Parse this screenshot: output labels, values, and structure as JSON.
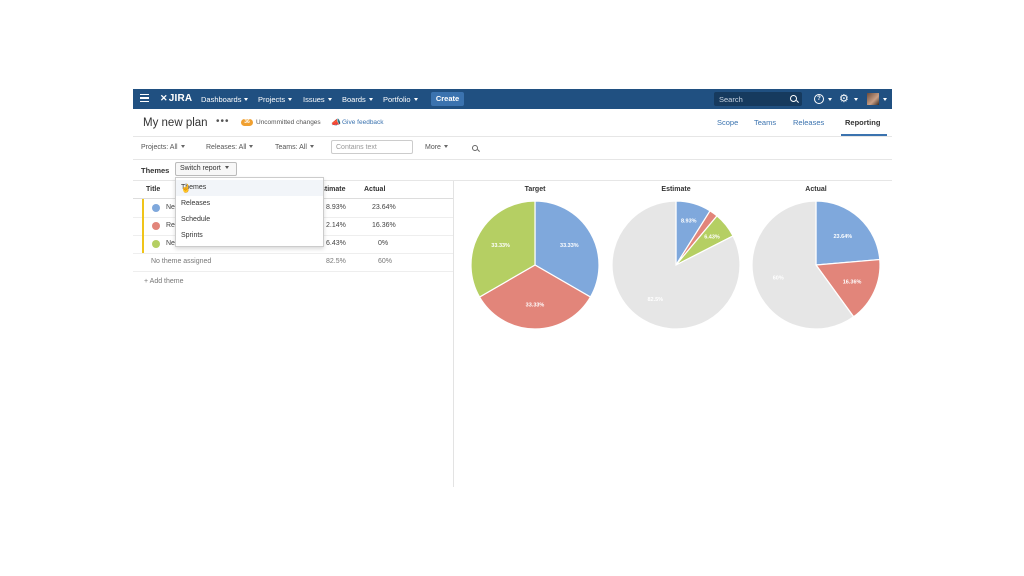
{
  "nav": {
    "logo": "JIRA",
    "items": [
      {
        "label": "Dashboards"
      },
      {
        "label": "Issues"
      },
      {
        "label": "Boards"
      },
      {
        "label": "Portfolio"
      }
    ],
    "projects_label": "Projects",
    "create_label": "Create",
    "search_placeholder": "Search",
    "help_icon": "help-icon",
    "settings_icon": "gear-icon"
  },
  "plan": {
    "title": "My new plan",
    "more": "•••",
    "uncommitted_count": "36",
    "uncommitted_label": "Uncommitted changes",
    "feedback_label": "Give feedback",
    "tabs": [
      {
        "label": "Scope"
      },
      {
        "label": "Teams"
      },
      {
        "label": "Releases"
      },
      {
        "label": "Reporting"
      }
    ]
  },
  "filters": {
    "projects": "Projects: All",
    "releases": "Releases: All",
    "teams": "Teams: All",
    "text_placeholder": "Contains text",
    "more": "More"
  },
  "report": {
    "label": "Themes",
    "switch_label": "Switch report",
    "options": [
      "Themes",
      "Releases",
      "Schedule",
      "Sprints"
    ]
  },
  "table": {
    "headers": {
      "title": "Title",
      "estimate": "stimate",
      "actual": "Actual"
    },
    "rows": [
      {
        "title": "Ne",
        "color": "#7fa8dc",
        "estimate": "8.93%",
        "actual": "23.64%"
      },
      {
        "title": "Re",
        "color": "#e2857a",
        "estimate": "2.14%",
        "actual": "16.36%"
      },
      {
        "title": "New St",
        "color": "#b5cf63",
        "estimate": "6.43%",
        "actual": "0%"
      }
    ],
    "unassigned": {
      "title": "No theme assigned",
      "estimate": "82.5%",
      "actual": "60%"
    },
    "add_theme": "+ Add theme"
  },
  "chart_data": [
    {
      "type": "pie",
      "title": "Target",
      "slices": [
        {
          "label": "33.33%",
          "value": 33.33,
          "color": "#7fa8dc"
        },
        {
          "label": "33.33%",
          "value": 33.33,
          "color": "#e2857a"
        },
        {
          "label": "33.33%",
          "value": 33.33,
          "color": "#b5cf63"
        }
      ]
    },
    {
      "type": "pie",
      "title": "Estimate",
      "slices": [
        {
          "label": "8.93%",
          "value": 8.93,
          "color": "#7fa8dc"
        },
        {
          "label": "",
          "value": 2.14,
          "color": "#e2857a"
        },
        {
          "label": "6.43%",
          "value": 6.43,
          "color": "#b5cf63"
        },
        {
          "label": "82.5%",
          "value": 82.5,
          "color": "#e6e6e6"
        }
      ]
    },
    {
      "type": "pie",
      "title": "Actual",
      "slices": [
        {
          "label": "23.64%",
          "value": 23.64,
          "color": "#7fa8dc"
        },
        {
          "label": "16.36%",
          "value": 16.36,
          "color": "#e2857a"
        },
        {
          "label": "",
          "value": 0,
          "color": "#b5cf63"
        },
        {
          "label": "60%",
          "value": 60,
          "color": "#e6e6e6"
        }
      ]
    }
  ]
}
